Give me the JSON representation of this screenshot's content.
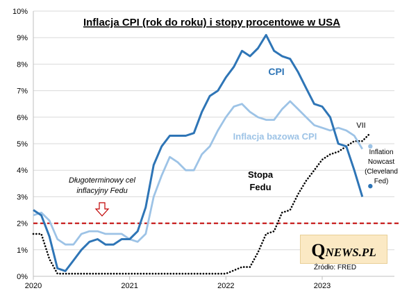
{
  "chart_data": {
    "type": "line",
    "title": "Inflacja CPI (rok do roku) i stopy procentowe w USA",
    "xlabel": "",
    "ylabel": "",
    "xlim": [
      2020.0,
      2023.75
    ],
    "ylim": [
      0,
      10
    ],
    "y_ticks": [
      "0%",
      "1%",
      "2%",
      "3%",
      "4%",
      "5%",
      "6%",
      "7%",
      "8%",
      "9%",
      "10%"
    ],
    "x_ticks": [
      {
        "label": "2020",
        "value": 2020.0
      },
      {
        "label": "2021",
        "value": 2021.0
      },
      {
        "label": "2022",
        "value": 2022.0
      },
      {
        "label": "2023",
        "value": 2023.0
      }
    ],
    "grid": true,
    "series": [
      {
        "name": "CPI",
        "color": "#2e75b6",
        "style": "solid",
        "x": [
          2020.0,
          2020.083,
          2020.167,
          2020.25,
          2020.333,
          2020.417,
          2020.5,
          2020.583,
          2020.667,
          2020.75,
          2020.833,
          2020.917,
          2021.0,
          2021.083,
          2021.167,
          2021.25,
          2021.333,
          2021.417,
          2021.5,
          2021.583,
          2021.667,
          2021.75,
          2021.833,
          2021.917,
          2022.0,
          2022.083,
          2022.167,
          2022.25,
          2022.333,
          2022.417,
          2022.5,
          2022.583,
          2022.667,
          2022.75,
          2022.833,
          2022.917,
          2023.0,
          2023.083,
          2023.167,
          2023.25,
          2023.333,
          2023.417
        ],
        "values": [
          2.5,
          2.3,
          1.5,
          0.3,
          0.2,
          0.6,
          1.0,
          1.3,
          1.4,
          1.2,
          1.2,
          1.4,
          1.4,
          1.7,
          2.6,
          4.2,
          4.9,
          5.3,
          5.3,
          5.3,
          5.4,
          6.2,
          6.8,
          7.0,
          7.5,
          7.9,
          8.5,
          8.3,
          8.6,
          9.1,
          8.5,
          8.3,
          8.2,
          7.7,
          7.1,
          6.5,
          6.4,
          6.0,
          5.0,
          4.9,
          4.0,
          3.0
        ]
      },
      {
        "name": "Inflacja bazowa CPI",
        "color": "#9dc3e6",
        "style": "solid",
        "x": [
          2020.0,
          2020.083,
          2020.167,
          2020.25,
          2020.333,
          2020.417,
          2020.5,
          2020.583,
          2020.667,
          2020.75,
          2020.833,
          2020.917,
          2021.0,
          2021.083,
          2021.167,
          2021.25,
          2021.333,
          2021.417,
          2021.5,
          2021.583,
          2021.667,
          2021.75,
          2021.833,
          2021.917,
          2022.0,
          2022.083,
          2022.167,
          2022.25,
          2022.333,
          2022.417,
          2022.5,
          2022.583,
          2022.667,
          2022.75,
          2022.833,
          2022.917,
          2023.0,
          2023.083,
          2023.167,
          2023.25,
          2023.333,
          2023.417
        ],
        "values": [
          2.3,
          2.4,
          2.1,
          1.4,
          1.2,
          1.2,
          1.6,
          1.7,
          1.7,
          1.6,
          1.6,
          1.6,
          1.4,
          1.3,
          1.6,
          3.0,
          3.8,
          4.5,
          4.3,
          4.0,
          4.0,
          4.6,
          4.9,
          5.5,
          6.0,
          6.4,
          6.5,
          6.2,
          6.0,
          5.9,
          5.9,
          6.3,
          6.6,
          6.3,
          6.0,
          5.7,
          5.6,
          5.5,
          5.6,
          5.5,
          5.3,
          4.8
        ]
      },
      {
        "name": "Stopa Fedu",
        "color": "#000000",
        "style": "dotted",
        "x": [
          2020.0,
          2020.083,
          2020.167,
          2020.25,
          2021.0,
          2022.0,
          2022.167,
          2022.25,
          2022.333,
          2022.417,
          2022.5,
          2022.583,
          2022.667,
          2022.75,
          2022.833,
          2022.917,
          2023.0,
          2023.083,
          2023.167,
          2023.25,
          2023.333,
          2023.417,
          2023.5
        ],
        "values": [
          1.6,
          1.6,
          0.65,
          0.1,
          0.1,
          0.1,
          0.35,
          0.35,
          0.9,
          1.6,
          1.7,
          2.4,
          2.5,
          3.1,
          3.6,
          4.0,
          4.4,
          4.6,
          4.7,
          4.9,
          5.1,
          5.1,
          5.4
        ]
      },
      {
        "name": "Inflation Nowcast (Cleveland Fed)",
        "type": "scatter",
        "points": [
          {
            "x": 2023.5,
            "y": 4.9,
            "color": "#9dc3e6"
          },
          {
            "x": 2023.5,
            "y": 3.4,
            "color": "#2e75b6"
          }
        ]
      }
    ],
    "reference_lines": [
      {
        "y": 2.0,
        "color": "#c00000",
        "style": "dashed",
        "label": "Długoterminowy cel inflacyjny Fedu"
      }
    ],
    "annotations": {
      "cpi": "CPI",
      "core": "Inflacja bazowa CPI",
      "fed_line1": "Stopa",
      "fed_line2": "Fedu",
      "vii": "VII",
      "target_line1": "Długoterminowy cel",
      "target_line2": "inflacyjny Fedu",
      "nowcast_lines": [
        "Inflation",
        "Nowcast",
        "(Cleveland",
        "Fed)"
      ]
    }
  },
  "branding": {
    "logo_q": "Q",
    "logo_rest": "NEWS.PL",
    "source": "Źródło: FRED"
  }
}
